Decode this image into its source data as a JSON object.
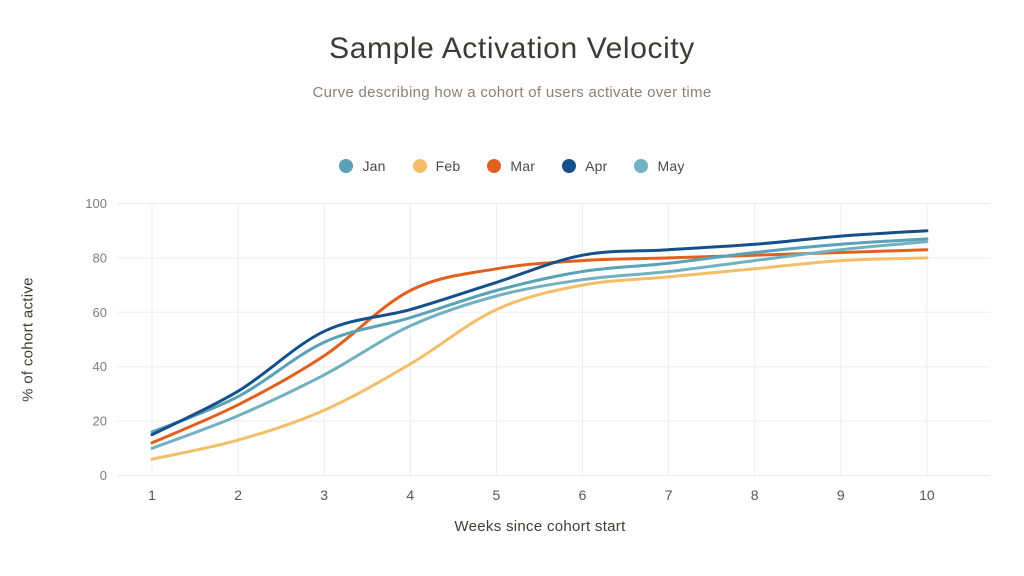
{
  "title": "Sample Activation Velocity",
  "subtitle": "Curve describing how a cohort of users activate over time",
  "colors": {
    "background": "#ffffff",
    "gridline": "#ededed",
    "title_text": "#3d3a38",
    "subtitle_text": "#8d8076"
  },
  "chart_data": {
    "type": "line",
    "title": "Sample Activation Velocity",
    "subtitle": "Curve describing how a cohort of users activate over time",
    "xlabel": "Weeks since cohort start",
    "ylabel": "% of cohort active",
    "x": [
      1,
      2,
      3,
      4,
      5,
      6,
      7,
      8,
      9,
      10
    ],
    "xlim": [
      1,
      10
    ],
    "ylim": [
      0,
      100
    ],
    "yticks": [
      0,
      20,
      40,
      60,
      80,
      100
    ],
    "grid": true,
    "legend_position": "top-center",
    "series": [
      {
        "name": "Jan",
        "color": "#5AA2B5",
        "values": [
          16,
          29,
          49,
          58,
          68,
          75,
          78,
          82,
          85,
          87
        ]
      },
      {
        "name": "Feb",
        "color": "#F4BE68",
        "values": [
          6,
          13,
          24,
          41,
          61,
          70,
          73,
          76,
          79,
          80
        ]
      },
      {
        "name": "Mar",
        "color": "#E0611F",
        "values": [
          12,
          26,
          44,
          68,
          76,
          79,
          80,
          81,
          82,
          83
        ]
      },
      {
        "name": "Apr",
        "color": "#15508D",
        "values": [
          15,
          31,
          53,
          61,
          71,
          81,
          83,
          85,
          88,
          90
        ]
      },
      {
        "name": "May",
        "color": "#72B1C1",
        "values": [
          10,
          22,
          37,
          55,
          66,
          72,
          75,
          79,
          83,
          86
        ]
      }
    ]
  }
}
